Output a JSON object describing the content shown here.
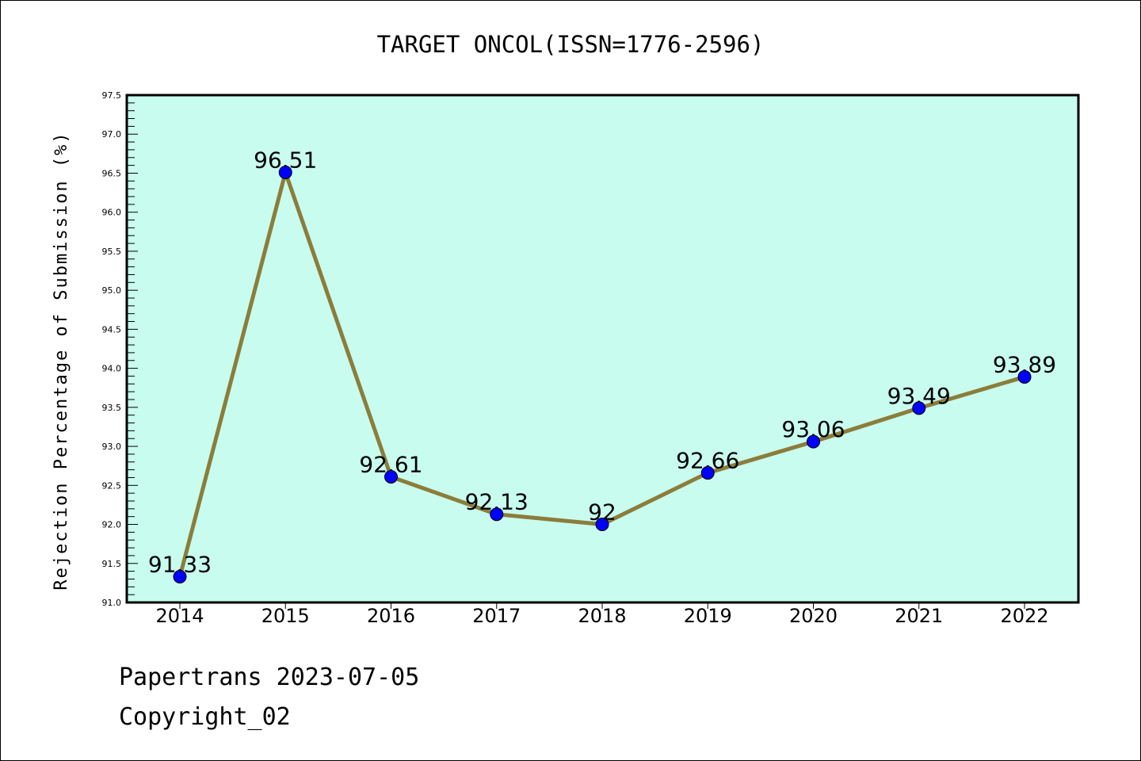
{
  "chart_data": {
    "type": "line",
    "title": "TARGET ONCOL(ISSN=1776-2596)",
    "xlabel": "",
    "ylabel": "Rejection Percentage of Submission (%)",
    "categories": [
      "2014",
      "2015",
      "2016",
      "2017",
      "2018",
      "2019",
      "2020",
      "2021",
      "2022"
    ],
    "series": [
      {
        "name": "Rejection Percentage",
        "values": [
          91.33,
          96.51,
          92.61,
          92.13,
          92.0,
          92.66,
          93.06,
          93.49,
          93.89
        ],
        "labels": [
          "91.33",
          "96.51",
          "92.61",
          "92.13",
          "92",
          "92.66",
          "93.06",
          "93.49",
          "93.89"
        ],
        "line_color": "#8b7d3a",
        "marker_color": "#0000ff"
      }
    ],
    "ylim": [
      91.0,
      97.5
    ],
    "yticks": [
      "91.0",
      "91.5",
      "92.0",
      "92.5",
      "93.0",
      "93.5",
      "94.0",
      "94.5",
      "95.0",
      "95.5",
      "96.0",
      "96.5",
      "97.0",
      "97.5"
    ],
    "ytick_values": [
      91.0,
      91.5,
      92.0,
      92.5,
      93.0,
      93.5,
      94.0,
      94.5,
      95.0,
      95.5,
      96.0,
      96.5,
      97.0,
      97.5
    ],
    "minor_tick_step": 0.1,
    "grid": false,
    "legend": "none",
    "background": "#c8fcee"
  },
  "footer": {
    "line1": "Papertrans 2023-07-05",
    "line2": "Copyright_02"
  }
}
